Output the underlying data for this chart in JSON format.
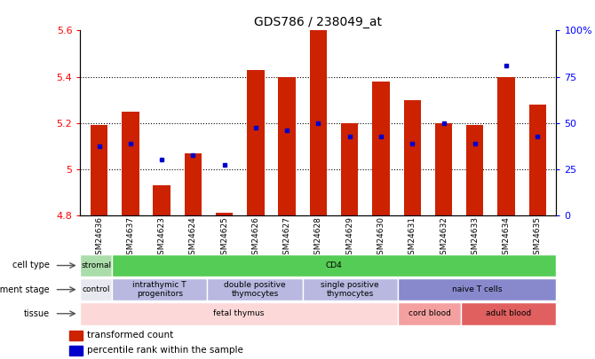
{
  "title": "GDS786 / 238049_at",
  "samples": [
    "GSM24636",
    "GSM24637",
    "GSM24623",
    "GSM24624",
    "GSM24625",
    "GSM24626",
    "GSM24627",
    "GSM24628",
    "GSM24629",
    "GSM24630",
    "GSM24631",
    "GSM24632",
    "GSM24633",
    "GSM24634",
    "GSM24635"
  ],
  "red_values": [
    5.19,
    5.25,
    4.93,
    5.07,
    4.81,
    5.43,
    5.4,
    5.6,
    5.2,
    5.38,
    5.3,
    5.2,
    5.19,
    5.4,
    5.28
  ],
  "blue_values": [
    5.1,
    5.11,
    5.04,
    5.06,
    5.02,
    5.18,
    5.17,
    5.2,
    5.14,
    5.14,
    5.11,
    5.2,
    5.11,
    5.45,
    5.14
  ],
  "ymin": 4.8,
  "ymax": 5.6,
  "bar_color": "#cc2200",
  "dot_color": "#0000cc",
  "cell_type_groups": [
    {
      "label": "stromal",
      "start": 0,
      "end": 1,
      "color": "#aaddaa"
    },
    {
      "label": "CD4",
      "start": 1,
      "end": 15,
      "color": "#55cc55"
    }
  ],
  "dev_stage_groups": [
    {
      "label": "control",
      "start": 0,
      "end": 1,
      "color": "#e8e8f0"
    },
    {
      "label": "intrathymic T\nprogenitors",
      "start": 1,
      "end": 4,
      "color": "#b8b8e0"
    },
    {
      "label": "double positive\nthymocytes",
      "start": 4,
      "end": 7,
      "color": "#b8b8e0"
    },
    {
      "label": "single positive\nthymocytes",
      "start": 7,
      "end": 10,
      "color": "#b8b8e0"
    },
    {
      "label": "naive T cells",
      "start": 10,
      "end": 15,
      "color": "#8888cc"
    }
  ],
  "tissue_groups": [
    {
      "label": "fetal thymus",
      "start": 0,
      "end": 10,
      "color": "#fdd8d8"
    },
    {
      "label": "cord blood",
      "start": 10,
      "end": 12,
      "color": "#f4a0a0"
    },
    {
      "label": "adult blood",
      "start": 12,
      "end": 15,
      "color": "#e06060"
    }
  ],
  "row_labels": [
    "cell type",
    "development stage",
    "tissue"
  ],
  "legend_items": [
    {
      "color": "#cc2200",
      "label": "transformed count"
    },
    {
      "color": "#0000cc",
      "label": "percentile rank within the sample"
    }
  ]
}
